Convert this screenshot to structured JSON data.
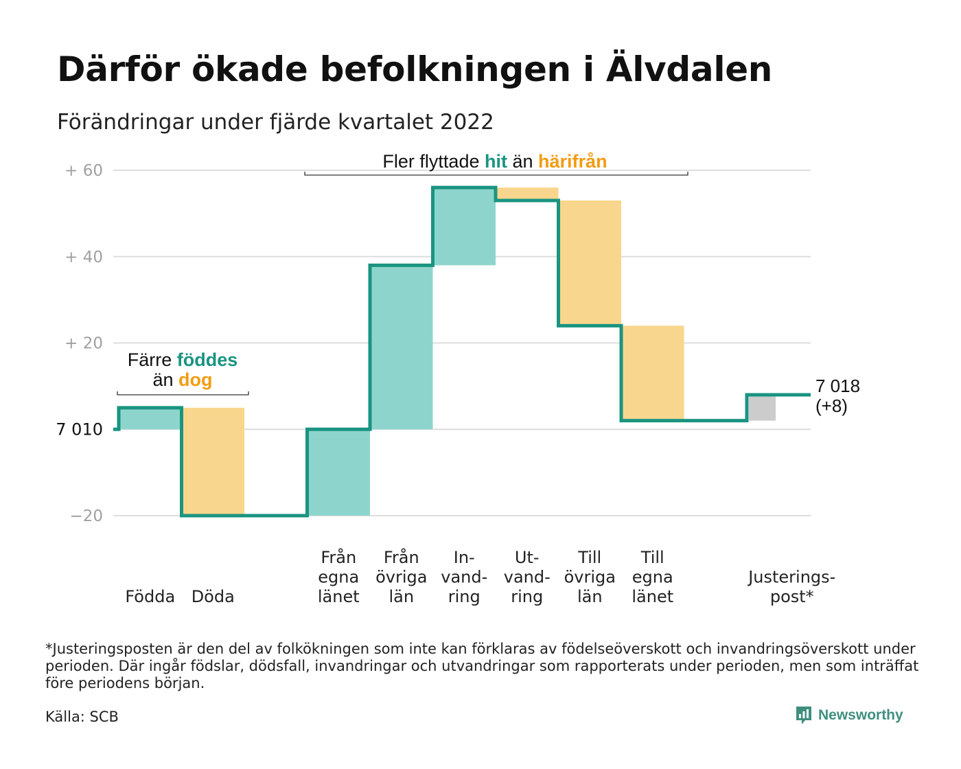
{
  "title": "Därför ökade befolkningen i Älvdalen",
  "subtitle": "Förändringar under fjärde kvartalet 2022",
  "footnote": "*Justeringsposten är den del av folkökningen som inte kan förklaras av födelseöverskott och invandringsöverskott under perioden. Där ingår födslar, dödsfall, invandringar och utvandringar som rapporterats under perioden, men som inträffat före periodens början.",
  "source": "Källa: SCB",
  "brand": "Newsworthy",
  "colors": {
    "increase": "#8dd5cc",
    "decrease": "#f9d68d",
    "adjustment": "#cccccc",
    "line": "#1a9481",
    "accent_green": "#1a9481",
    "accent_orange": "#f39c12",
    "grid": "#dddddd",
    "tick_text": "#a0a0a0"
  },
  "chart_data": {
    "type": "waterfall",
    "baseline_value": 7010,
    "baseline_label": "7 010",
    "end_value": 7018,
    "end_label": "7 018",
    "end_change_label": "(+8)",
    "ylim": [
      -20,
      60
    ],
    "y_ticks": [
      {
        "value": 60,
        "label": "+ 60"
      },
      {
        "value": 40,
        "label": "+ 40"
      },
      {
        "value": 20,
        "label": "+ 20"
      },
      {
        "value": 0,
        "label": "7 010"
      },
      {
        "value": -20,
        "label": "−20"
      }
    ],
    "steps": [
      {
        "category": "Födda",
        "lines": [
          "Födda"
        ],
        "start": 0,
        "end": 5,
        "kind": "increase"
      },
      {
        "category": "Döda",
        "lines": [
          "Döda"
        ],
        "start": 5,
        "end": -20,
        "kind": "decrease"
      },
      {
        "category": "",
        "lines": [],
        "start": -20,
        "end": -20,
        "kind": "none"
      },
      {
        "category": "Från egna länet",
        "lines": [
          "Från",
          "egna",
          "länet"
        ],
        "start": -20,
        "end": 0,
        "kind": "increase"
      },
      {
        "category": "Från övriga län",
        "lines": [
          "Från",
          "övriga",
          "län"
        ],
        "start": 0,
        "end": 38,
        "kind": "increase"
      },
      {
        "category": "In-vandring",
        "lines": [
          "In-",
          "vand-",
          "ring"
        ],
        "start": 38,
        "end": 56,
        "kind": "increase"
      },
      {
        "category": "Ut-vandring",
        "lines": [
          "Ut-",
          "vand-",
          "ring"
        ],
        "start": 56,
        "end": 53,
        "kind": "decrease"
      },
      {
        "category": "Till övriga län",
        "lines": [
          "Till",
          "övriga",
          "län"
        ],
        "start": 53,
        "end": 24,
        "kind": "decrease"
      },
      {
        "category": "Till egna länet",
        "lines": [
          "Till",
          "egna",
          "länet"
        ],
        "start": 24,
        "end": 2,
        "kind": "decrease"
      },
      {
        "category": "",
        "lines": [],
        "start": 2,
        "end": 2,
        "kind": "none"
      },
      {
        "category": "Justerings-post*",
        "lines": [
          "Justerings-",
          "post*"
        ],
        "start": 2,
        "end": 8,
        "kind": "adjustment"
      }
    ],
    "annotations": {
      "births": {
        "line1": "Färre ",
        "line1_hl": "föddes",
        "line2": "än ",
        "line2_hl": "dog"
      },
      "migration": {
        "pre": "Fler flyttade ",
        "hl1": "hit",
        "mid": " än ",
        "hl2": "härifrån"
      }
    }
  }
}
